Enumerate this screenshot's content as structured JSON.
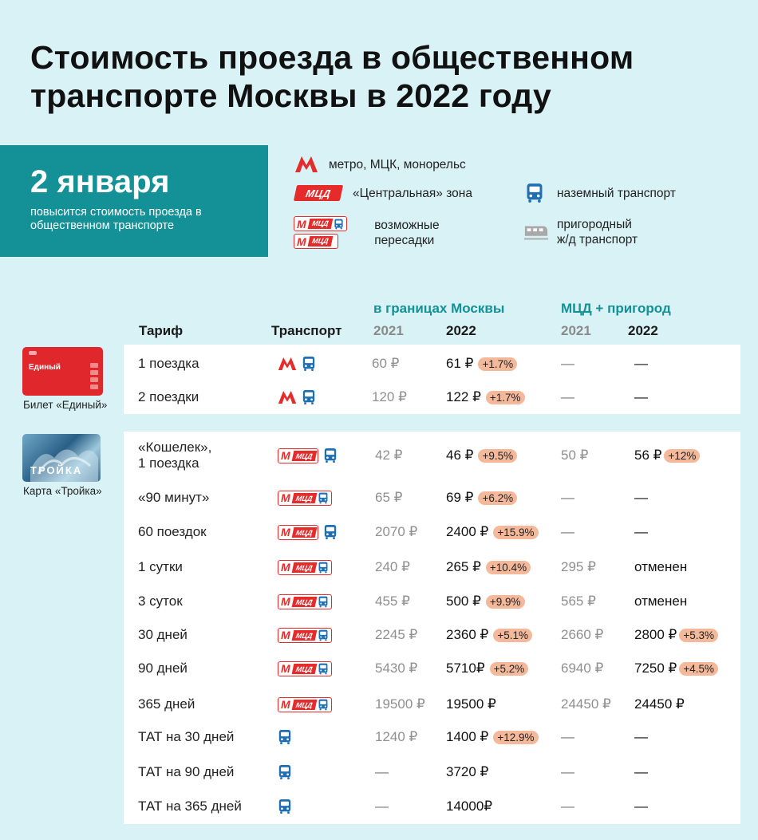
{
  "title": "Стоимость проезда в общественном транспорте Москвы в 2022 году",
  "banner": {
    "date": "2 января",
    "subtitle": "повысится стоимость проезда в общественном транспорте"
  },
  "legend": {
    "metro": "метро, МЦК, монорельс",
    "mcd": "«Центральная» зона",
    "transfers": "возможные\nпересадки",
    "ground": "наземный транспорт",
    "suburban": "пригородный\nж/д транспорт",
    "mcd_badge": "МЦД",
    "metro_letter": "M"
  },
  "headers": {
    "tariff": "Тариф",
    "transport": "Транспорт",
    "moscow": "в границах Москвы",
    "mcd": "МЦД + пригород",
    "y2021a": "2021",
    "y2022a": "2022",
    "y2021b": "2021",
    "y2022b": "2022"
  },
  "cards": {
    "edinyi_label": "Билет «Единый»",
    "edinyi_text": "Единый",
    "troika_label": "Карта «Тройка»",
    "troika_text": "ТРОЙКА"
  },
  "rows": [
    {
      "tariff": "1 поездка",
      "icons": "metro-bus",
      "m21": "60 ₽",
      "m22": "61 ₽",
      "mb": "+1.7%",
      "c21": "—",
      "c22": "—",
      "cb": ""
    },
    {
      "tariff": "2 поездки",
      "icons": "metro-bus",
      "m21": "120 ₽",
      "m22": "122 ₽",
      "mb": "+1.7%",
      "c21": "—",
      "c22": "—",
      "cb": ""
    },
    {
      "tariff": "«Кошелек»,\n1 поездка",
      "icons": "combo-bus",
      "m21": "42 ₽",
      "m22": "46 ₽",
      "mb": "+9.5%",
      "c21": "50 ₽",
      "c22": "56 ₽",
      "cb": "+12%"
    },
    {
      "tariff": "«90 минут»",
      "icons": "combo",
      "m21": "65 ₽",
      "m22": "69 ₽",
      "mb": "+6.2%",
      "c21": "—",
      "c22": "—",
      "cb": ""
    },
    {
      "tariff": "60 поездок",
      "icons": "combo-bus",
      "m21": "2070 ₽",
      "m22": "2400 ₽",
      "mb": "+15.9%",
      "c21": "—",
      "c22": "—",
      "cb": ""
    },
    {
      "tariff": "1 сутки",
      "icons": "combo",
      "m21": "240 ₽",
      "m22": "265 ₽",
      "mb": "+10.4%",
      "c21": "295 ₽",
      "c22": "отменен",
      "cb": ""
    },
    {
      "tariff": "3 суток",
      "icons": "combo",
      "m21": "455 ₽",
      "m22": "500 ₽",
      "mb": "+9.9%",
      "c21": "565 ₽",
      "c22": "отменен",
      "cb": ""
    },
    {
      "tariff": "30 дней",
      "icons": "combo",
      "m21": "2245 ₽",
      "m22": "2360 ₽",
      "mb": "+5.1%",
      "c21": "2660 ₽",
      "c22": "2800 ₽",
      "cb": "+5.3%"
    },
    {
      "tariff": "90 дней",
      "icons": "combo",
      "m21": "5430 ₽",
      "m22": "5710₽",
      "mb": "+5.2%",
      "c21": "6940 ₽",
      "c22": "7250 ₽",
      "cb": "+4.5%"
    },
    {
      "tariff": "365 дней",
      "icons": "combo",
      "m21": "19500 ₽",
      "m22": "19500 ₽",
      "mb": "",
      "c21": "24450 ₽",
      "c22": "24450 ₽",
      "cb": ""
    },
    {
      "tariff": "ТАТ на 30 дней",
      "icons": "bus",
      "m21": "1240 ₽",
      "m22": "1400 ₽",
      "mb": "+12.9%",
      "c21": "—",
      "c22": "—",
      "cb": ""
    },
    {
      "tariff": "ТАТ на 90 дней",
      "icons": "bus",
      "m21": "—",
      "m22": "3720 ₽",
      "mb": "",
      "c21": "—",
      "c22": "—",
      "cb": ""
    },
    {
      "tariff": "ТАТ на 365 дней",
      "icons": "bus",
      "m21": "—",
      "m22": "14000₽",
      "mb": "",
      "c21": "—",
      "c22": "—",
      "cb": ""
    }
  ],
  "colors": {
    "teal": "#149097",
    "red": "#e62b2b",
    "blue": "#1f6fb5",
    "badge": "#f4b89a"
  }
}
